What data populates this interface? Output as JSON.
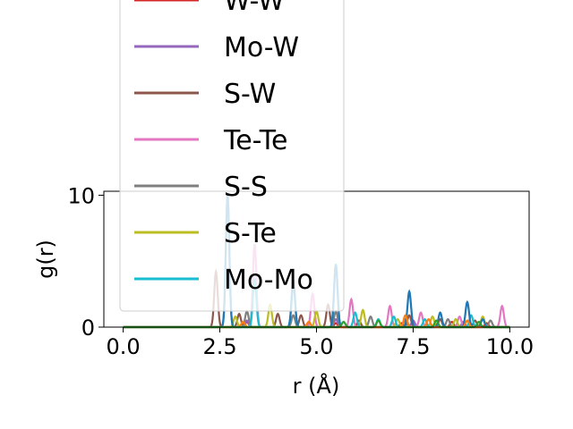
{
  "chart_data": {
    "type": "line",
    "title": "",
    "xlabel": "r (Å)",
    "ylabel": "g(r)",
    "xlim": [
      -0.5,
      10.5
    ],
    "ylim": [
      0,
      10.3
    ],
    "xticks": [
      "0.0",
      "2.5",
      "5.0",
      "7.5",
      "10.0"
    ],
    "xtick_values": [
      0,
      2.5,
      5,
      7.5,
      10
    ],
    "yticks": [
      "0",
      "10"
    ],
    "ytick_values": [
      0,
      10
    ],
    "grid": false,
    "legend_position": "upper-left",
    "series": [
      {
        "name": "W-W",
        "color": "#d62728",
        "peaks": [
          [
            3.2,
            0.4
          ],
          [
            5.5,
            0.3
          ],
          [
            7.2,
            0.3
          ],
          [
            8.5,
            0.4
          ],
          [
            9.4,
            0.3
          ]
        ]
      },
      {
        "name": "Mo-W",
        "color": "#9467bd",
        "peaks": [
          [
            3.2,
            0.5
          ],
          [
            5.5,
            0.6
          ],
          [
            7.5,
            0.5
          ],
          [
            8.8,
            0.4
          ]
        ]
      },
      {
        "name": "S-W",
        "color": "#8c564b",
        "peaks": [
          [
            2.4,
            4.2
          ],
          [
            3.0,
            1.0
          ],
          [
            4.0,
            1.0
          ],
          [
            4.6,
            0.9
          ],
          [
            5.3,
            1.7
          ],
          [
            6.1,
            0.5
          ],
          [
            7.4,
            0.9
          ],
          [
            8.2,
            0.6
          ],
          [
            9.1,
            0.5
          ]
        ]
      },
      {
        "name": "Te-Te",
        "color": "#e377c2",
        "peaks": [
          [
            3.4,
            6.3
          ],
          [
            4.9,
            2.5
          ],
          [
            5.9,
            2.1
          ],
          [
            6.9,
            1.6
          ],
          [
            7.7,
            1.1
          ],
          [
            8.7,
            0.8
          ],
          [
            9.8,
            1.6
          ]
        ]
      },
      {
        "name": "S-S",
        "color": "#7f7f7f",
        "peaks": [
          [
            3.2,
            1.2
          ],
          [
            4.4,
            0.9
          ],
          [
            5.5,
            1.2
          ],
          [
            6.4,
            0.8
          ],
          [
            7.3,
            0.6
          ],
          [
            8.4,
            0.6
          ],
          [
            9.5,
            0.5
          ]
        ]
      },
      {
        "name": "S-Te",
        "color": "#bcbd22",
        "peaks": [
          [
            2.9,
            0.8
          ],
          [
            3.8,
            1.7
          ],
          [
            5.0,
            1.2
          ],
          [
            6.2,
            1.3
          ],
          [
            7.1,
            0.6
          ],
          [
            8.0,
            0.8
          ],
          [
            8.6,
            0.6
          ],
          [
            9.3,
            0.8
          ]
        ]
      },
      {
        "name": "Mo-Mo",
        "color": "#17becf",
        "peaks": [
          [
            2.7,
            10.0
          ],
          [
            3.4,
            3.6
          ],
          [
            4.4,
            3.2
          ],
          [
            5.5,
            4.8
          ],
          [
            6.0,
            1.1
          ],
          [
            6.6,
            0.6
          ],
          [
            7.0,
            0.8
          ],
          [
            7.8,
            0.6
          ],
          [
            9.0,
            0.9
          ]
        ]
      },
      {
        "name": "",
        "color": "#1f77b4",
        "peaks": [
          [
            2.7,
            10.0
          ],
          [
            4.4,
            3.6
          ],
          [
            5.5,
            4.7
          ],
          [
            7.4,
            2.7
          ],
          [
            8.2,
            1.1
          ],
          [
            8.9,
            1.9
          ],
          [
            9.3,
            0.6
          ]
        ]
      },
      {
        "name": "",
        "color": "#ff7f0e",
        "peaks": [
          [
            3.1,
            0.4
          ],
          [
            4.8,
            0.4
          ],
          [
            7.3,
            0.9
          ],
          [
            7.9,
            0.6
          ],
          [
            8.9,
            0.5
          ]
        ]
      },
      {
        "name": "",
        "color": "#2ca02c",
        "peaks": [
          [
            5.7,
            0.4
          ],
          [
            6.6,
            0.5
          ],
          [
            8.1,
            0.5
          ],
          [
            9.2,
            0.4
          ]
        ]
      }
    ],
    "legend_entries": [
      "W-W",
      "Mo-W",
      "S-W",
      "Te-Te",
      "S-S",
      "S-Te",
      "Mo-Mo"
    ]
  }
}
